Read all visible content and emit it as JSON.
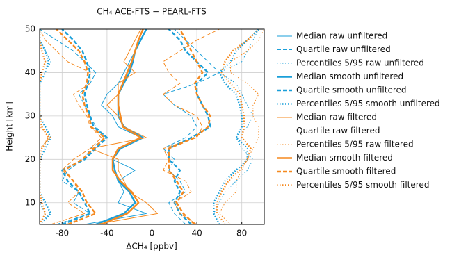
{
  "chart_data": {
    "type": "line",
    "title": "CH₄ ACE-FTS − PEARL-FTS",
    "xlabel": "ΔCH₄ [ppbv]",
    "ylabel": "Height [km]",
    "xlim": [
      -100,
      100
    ],
    "xticks": [
      -80,
      -40,
      0,
      40,
      80
    ],
    "ylim": [
      5,
      50
    ],
    "yticks": [
      10,
      20,
      30,
      40,
      50
    ],
    "grid": true,
    "legend": "outside right",
    "y": [
      5,
      7.5,
      10,
      12.5,
      15,
      17.5,
      20,
      22.5,
      25,
      27.5,
      30,
      32.5,
      35,
      37.5,
      40,
      42.5,
      45,
      47.5,
      50
    ],
    "series": [
      {
        "name": "Median raw unfiltered",
        "color": "#1a9fd9",
        "width": 1,
        "dash": "solid",
        "values": [
          [
            -60,
            -5,
            -30,
            -25,
            -30,
            -15,
            -35,
            -30,
            -10,
            -30,
            -35,
            -45,
            -40,
            -30,
            -25,
            -20,
            -15,
            -10,
            -5
          ]
        ]
      },
      {
        "name": "Quartile raw unfiltered",
        "color": "#1a9fd9",
        "width": 1,
        "dash": "dashed",
        "values": [
          [
            -85,
            -55,
            -70,
            -65,
            -80,
            -75,
            -60,
            -55,
            -40,
            -50,
            -55,
            -60,
            -65,
            -55,
            -50,
            -60,
            -70,
            -85,
            -100
          ],
          [
            30,
            20,
            15,
            30,
            25,
            15,
            20,
            10,
            30,
            40,
            35,
            20,
            10,
            40,
            60,
            50,
            40,
            30,
            20
          ]
        ]
      },
      {
        "name": "Percentiles 5/95 raw unfiltered",
        "color": "#1a9fd9",
        "width": 1,
        "dash": "dotted",
        "values": [
          [
            -100,
            -95,
            -100,
            -100,
            -100,
            -100,
            -100,
            -100,
            -90,
            -95,
            -100,
            -100,
            -100,
            -100,
            -95,
            -90,
            -95,
            -100,
            -100
          ],
          [
            60,
            55,
            60,
            65,
            75,
            85,
            90,
            80,
            75,
            85,
            90,
            85,
            80,
            75,
            60,
            80,
            85,
            90,
            95
          ]
        ]
      },
      {
        "name": "Median smooth unfiltered",
        "color": "#1a9fd9",
        "width": 2.4,
        "dash": "solid",
        "values": [
          [
            -50,
            -25,
            -15,
            -20,
            -30,
            -33,
            -35,
            -28,
            -8,
            -25,
            -30,
            -30,
            -30,
            -25,
            -20,
            -17,
            -15,
            -10,
            -5
          ]
        ]
      },
      {
        "name": "Quartile smooth unfiltered",
        "color": "#1a9fd9",
        "width": 2.4,
        "dash": "dashed",
        "values": [
          [
            -80,
            -55,
            -60,
            -65,
            -75,
            -80,
            -60,
            -50,
            -40,
            -52,
            -55,
            -58,
            -60,
            -57,
            -55,
            -58,
            -62,
            -70,
            -80
          ],
          [
            35,
            25,
            20,
            25,
            20,
            25,
            15,
            15,
            35,
            52,
            50,
            45,
            40,
            40,
            50,
            40,
            30,
            25,
            15
          ]
        ]
      },
      {
        "name": "Percentiles 5/95 smooth unfiltered",
        "color": "#1a9fd9",
        "width": 2.4,
        "dash": "dotted",
        "values": [
          [
            -100,
            -90,
            -95,
            -100,
            -100,
            -100,
            -100,
            -95,
            -90,
            -95,
            -100,
            -100,
            -100,
            -100,
            -95,
            -92,
            -95,
            -100,
            -100
          ],
          [
            60,
            55,
            55,
            60,
            65,
            75,
            85,
            85,
            75,
            80,
            80,
            78,
            75,
            65,
            60,
            70,
            75,
            85,
            95
          ]
        ]
      },
      {
        "name": "Median raw filtered",
        "color": "#f5891f",
        "width": 1,
        "dash": "solid",
        "values": [
          [
            -50,
            5,
            -5,
            -20,
            -25,
            -30,
            -30,
            -55,
            -5,
            -25,
            -30,
            -40,
            -30,
            -30,
            -15,
            -25,
            -20,
            -15,
            -10
          ]
        ]
      },
      {
        "name": "Quartile raw filtered",
        "color": "#f5891f",
        "width": 1,
        "dash": "dashed",
        "values": [
          [
            -90,
            -60,
            -75,
            -65,
            -70,
            -80,
            -70,
            -55,
            -45,
            -55,
            -58,
            -65,
            -70,
            -55,
            -55,
            -75,
            -85,
            -95,
            -100
          ],
          [
            40,
            25,
            20,
            35,
            30,
            10,
            15,
            10,
            40,
            45,
            40,
            20,
            10,
            25,
            15,
            10,
            25,
            40,
            60
          ]
        ]
      },
      {
        "name": "Percentiles 5/95 raw filtered",
        "color": "#f5891f",
        "width": 1,
        "dash": "dotted",
        "values": [
          [
            -100,
            -100,
            -100,
            -100,
            -100,
            -100,
            -100,
            -100,
            -90,
            -100,
            -100,
            -100,
            -100,
            -100,
            -100,
            -100,
            -100,
            -100,
            -100
          ],
          [
            70,
            60,
            65,
            75,
            75,
            80,
            85,
            90,
            95,
            95,
            90,
            90,
            95,
            85,
            70,
            70,
            85,
            95,
            100
          ]
        ]
      },
      {
        "name": "Median smooth filtered",
        "color": "#f5891f",
        "width": 2.4,
        "dash": "solid",
        "values": [
          [
            -45,
            -22,
            -12,
            -18,
            -28,
            -35,
            -35,
            -30,
            -10,
            -26,
            -28,
            -30,
            -30,
            -26,
            -22,
            -18,
            -15,
            -12,
            -8
          ]
        ]
      },
      {
        "name": "Quartile smooth filtered",
        "color": "#f5891f",
        "width": 2.4,
        "dash": "dashed",
        "values": [
          [
            -75,
            -50,
            -58,
            -62,
            -70,
            -78,
            -62,
            -52,
            -42,
            -54,
            -56,
            -60,
            -62,
            -58,
            -57,
            -60,
            -65,
            -75,
            -85
          ],
          [
            38,
            28,
            22,
            28,
            22,
            15,
            15,
            15,
            38,
            50,
            52,
            45,
            40,
            38,
            45,
            40,
            35,
            30,
            25
          ]
        ]
      },
      {
        "name": "Percentiles 5/95 smooth filtered",
        "color": "#f5891f",
        "width": 2.4,
        "dash": "dotted",
        "values": [
          [
            -100,
            -95,
            -98,
            -100,
            -100,
            -100,
            -100,
            -98,
            -92,
            -98,
            -100,
            -100,
            -100,
            -100,
            -98,
            -95,
            -98,
            -100,
            -100
          ],
          [
            65,
            58,
            58,
            62,
            68,
            78,
            85,
            88,
            80,
            82,
            82,
            80,
            78,
            70,
            62,
            65,
            72,
            85,
            95
          ]
        ]
      }
    ]
  }
}
